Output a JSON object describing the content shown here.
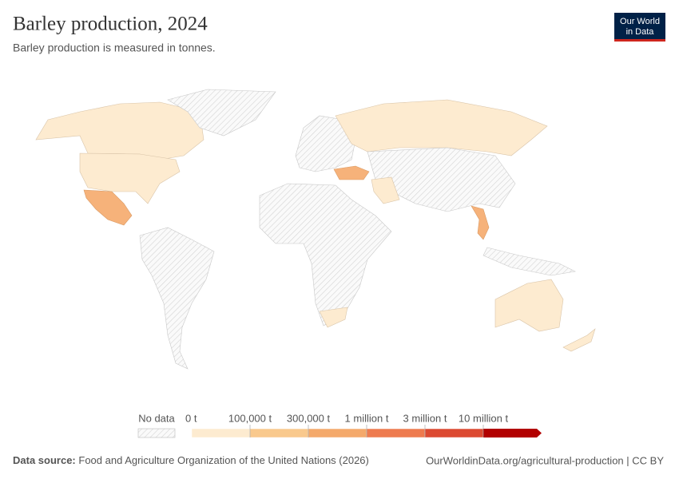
{
  "header": {
    "title": "Barley production, 2024",
    "subtitle": "Barley production is measured in tonnes.",
    "logo": [
      "Our World",
      "in Data"
    ]
  },
  "legend": {
    "no_data": "No data",
    "bins": [
      "0 t",
      "100,000 t",
      "300,000 t",
      "1 million t",
      "3 million t",
      "10 million t"
    ],
    "colors": [
      "#fdebd0",
      "#f9c98d",
      "#f4a96b",
      "#ee7b4f",
      "#dc4a32",
      "#b20000"
    ]
  },
  "footer": {
    "source_label": "Data source:",
    "source": "Food and Agriculture Organization of the United Nations (2026)",
    "url": "OurWorldinData.org/agricultural-production | CC BY"
  }
}
